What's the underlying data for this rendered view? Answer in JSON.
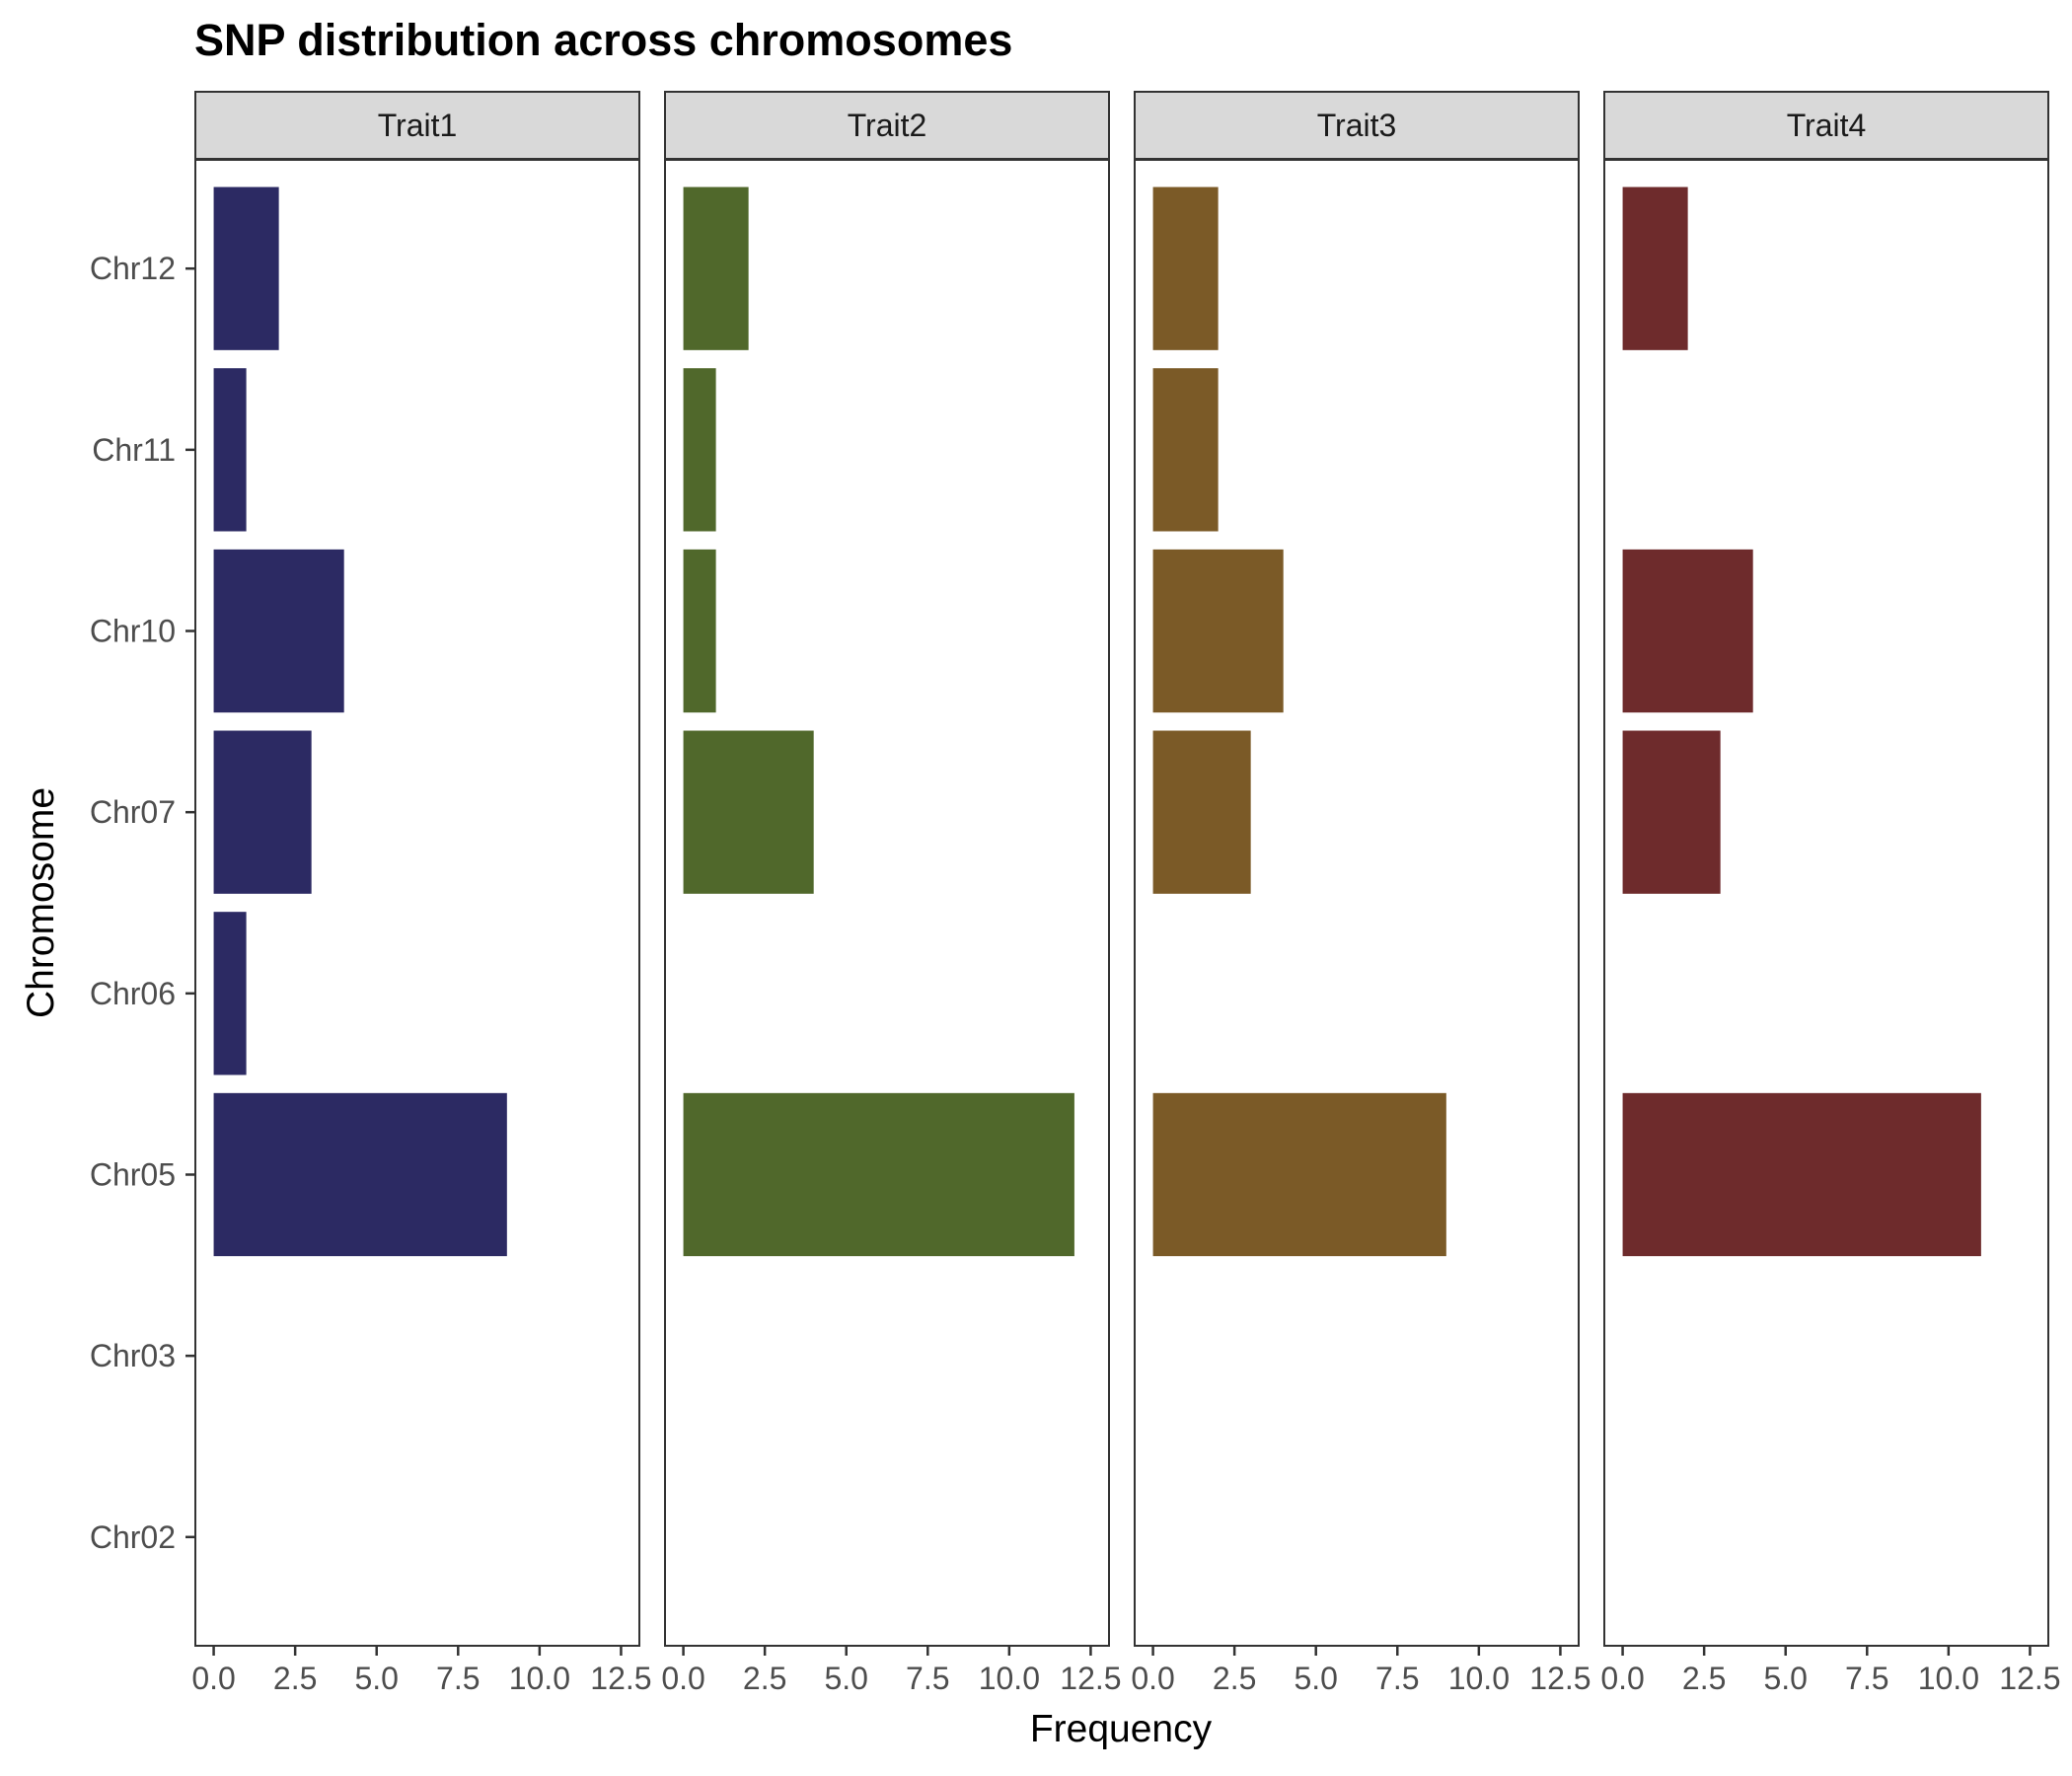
{
  "chart_data": {
    "type": "bar",
    "orientation": "horizontal",
    "title": "SNP distribution across chromosomes",
    "xlabel": "Frequency",
    "ylabel": "Chromosome",
    "categories": [
      "Chr02",
      "Chr03",
      "Chr05",
      "Chr06",
      "Chr07",
      "Chr10",
      "Chr11",
      "Chr12"
    ],
    "xlim": [
      0,
      12.5
    ],
    "x_ticks": [
      0,
      2.5,
      5,
      7.5,
      10,
      12.5
    ],
    "x_tick_labels": [
      "0.0",
      "2.5",
      "5.0",
      "7.5",
      "10.0",
      "12.5"
    ],
    "grid": false,
    "legend": "none",
    "facets": [
      {
        "label": "Trait1",
        "color": "#2c2a63",
        "values": [
          0,
          0,
          9,
          1,
          3,
          4,
          1,
          2
        ]
      },
      {
        "label": "Trait2",
        "color": "#50682b",
        "values": [
          0,
          0,
          12,
          0,
          4,
          1,
          1,
          2
        ]
      },
      {
        "label": "Trait3",
        "color": "#7b5a27",
        "values": [
          0,
          0,
          9,
          0,
          3,
          4,
          2,
          2
        ]
      },
      {
        "label": "Trait4",
        "color": "#6e2b2c",
        "values": [
          0,
          0,
          11,
          0,
          3,
          4,
          0,
          2
        ]
      }
    ]
  }
}
